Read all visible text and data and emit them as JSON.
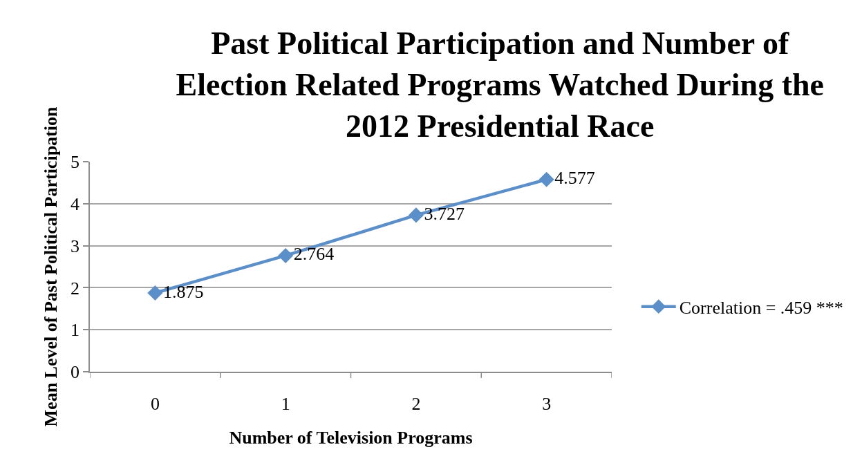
{
  "chart_data": {
    "type": "line",
    "title": "Past Political Participation and Number of Election Related Programs Watched During the 2012 Presidential Race",
    "xlabel": "Number of Television Programs",
    "ylabel": "Mean Level of Past Political Participation",
    "categories": [
      "0",
      "1",
      "2",
      "3"
    ],
    "series": [
      {
        "name": "Correlation = .459 ***",
        "color": "#5b8fc9",
        "values": [
          1.875,
          2.764,
          3.727,
          4.577
        ]
      }
    ],
    "ylim": [
      0,
      5
    ],
    "yticks": [
      0,
      1,
      2,
      3,
      4,
      5
    ],
    "grid": "y",
    "legend": "right",
    "marker": "diamond",
    "line_style": "solid",
    "data_labels": true
  }
}
